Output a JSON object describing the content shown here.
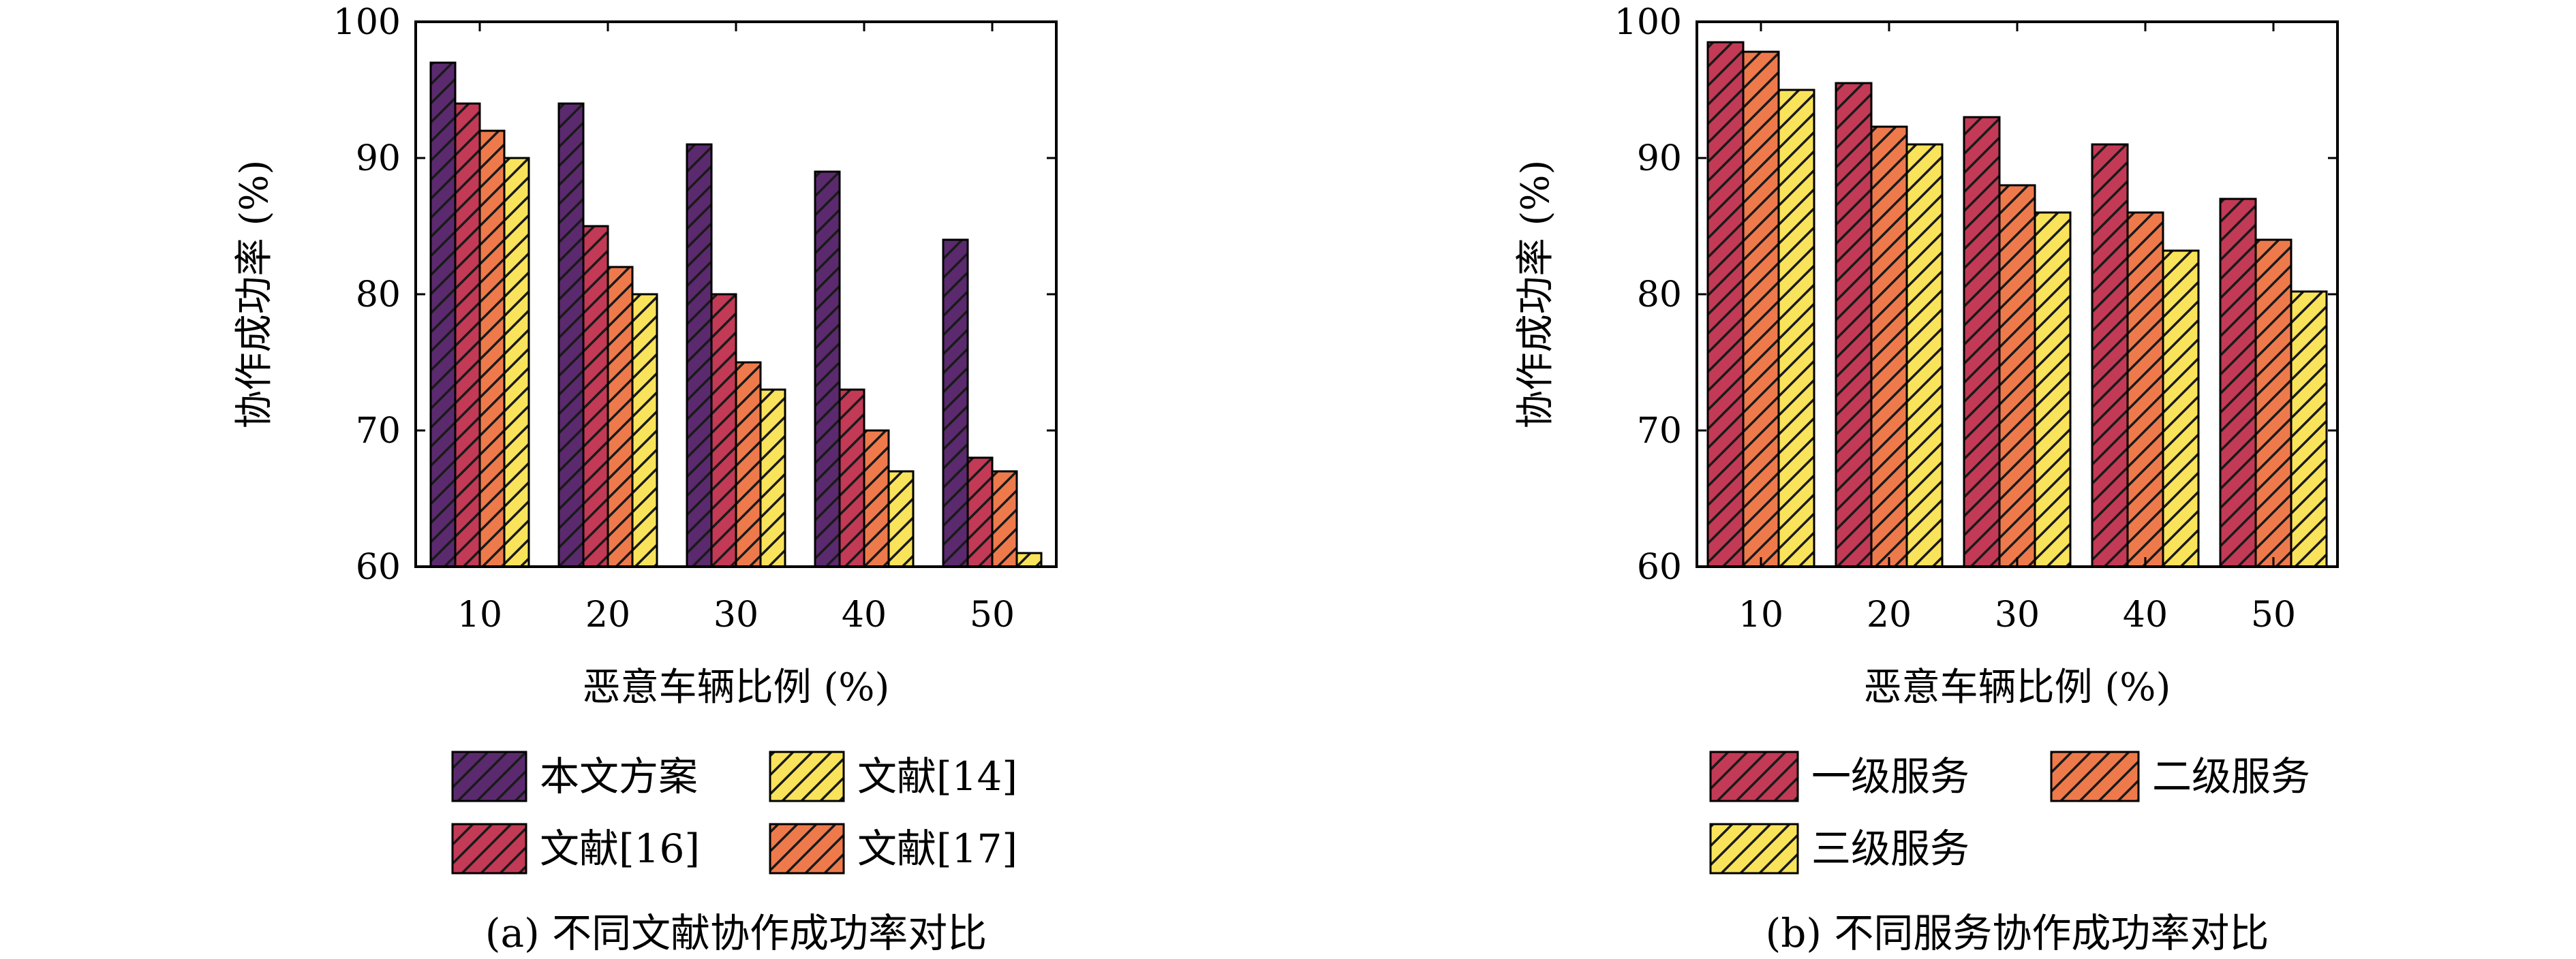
{
  "chart_data": [
    {
      "type": "bar",
      "caption": "(a) 不同文献协作成功率对比",
      "xlabel": "恶意车辆比例 (%)",
      "ylabel": "协作成功率 (%)",
      "ylim": [
        60,
        100
      ],
      "yticks": [
        60,
        70,
        80,
        90,
        100
      ],
      "categories": [
        "10",
        "20",
        "30",
        "40",
        "50"
      ],
      "grid": false,
      "legend_position": "bottom",
      "series": [
        {
          "name": "本文方案",
          "values": [
            97,
            94,
            91,
            89,
            84
          ],
          "color": "#5b2a6e"
        },
        {
          "name": "文献[16]",
          "values": [
            94,
            85,
            80,
            73,
            68
          ],
          "color": "#c23a55"
        },
        {
          "name": "文献[17]",
          "values": [
            92,
            82,
            75,
            70,
            67
          ],
          "color": "#ee7a4c"
        },
        {
          "name": "文献[14]",
          "values": [
            90,
            80,
            73,
            67,
            61
          ],
          "color": "#f9e35a"
        }
      ],
      "legend_order": [
        0,
        3,
        1,
        2
      ]
    },
    {
      "type": "bar",
      "caption": "(b) 不同服务协作成功率对比",
      "xlabel": "恶意车辆比例 (%)",
      "ylabel": "协作成功率 (%)",
      "ylim": [
        60,
        100
      ],
      "yticks": [
        60,
        70,
        80,
        90,
        100
      ],
      "categories": [
        "10",
        "20",
        "30",
        "40",
        "50"
      ],
      "grid": false,
      "legend_position": "bottom",
      "series": [
        {
          "name": "一级服务",
          "values": [
            98.5,
            95.5,
            93,
            91,
            87
          ],
          "color": "#c23a55"
        },
        {
          "name": "二级服务",
          "values": [
            97.8,
            92.3,
            88,
            86,
            84
          ],
          "color": "#ee7a4c"
        },
        {
          "name": "三级服务",
          "values": [
            95,
            91,
            86,
            83.2,
            80.2
          ],
          "color": "#f9e35a"
        }
      ],
      "legend_order": [
        0,
        1,
        2
      ]
    }
  ]
}
